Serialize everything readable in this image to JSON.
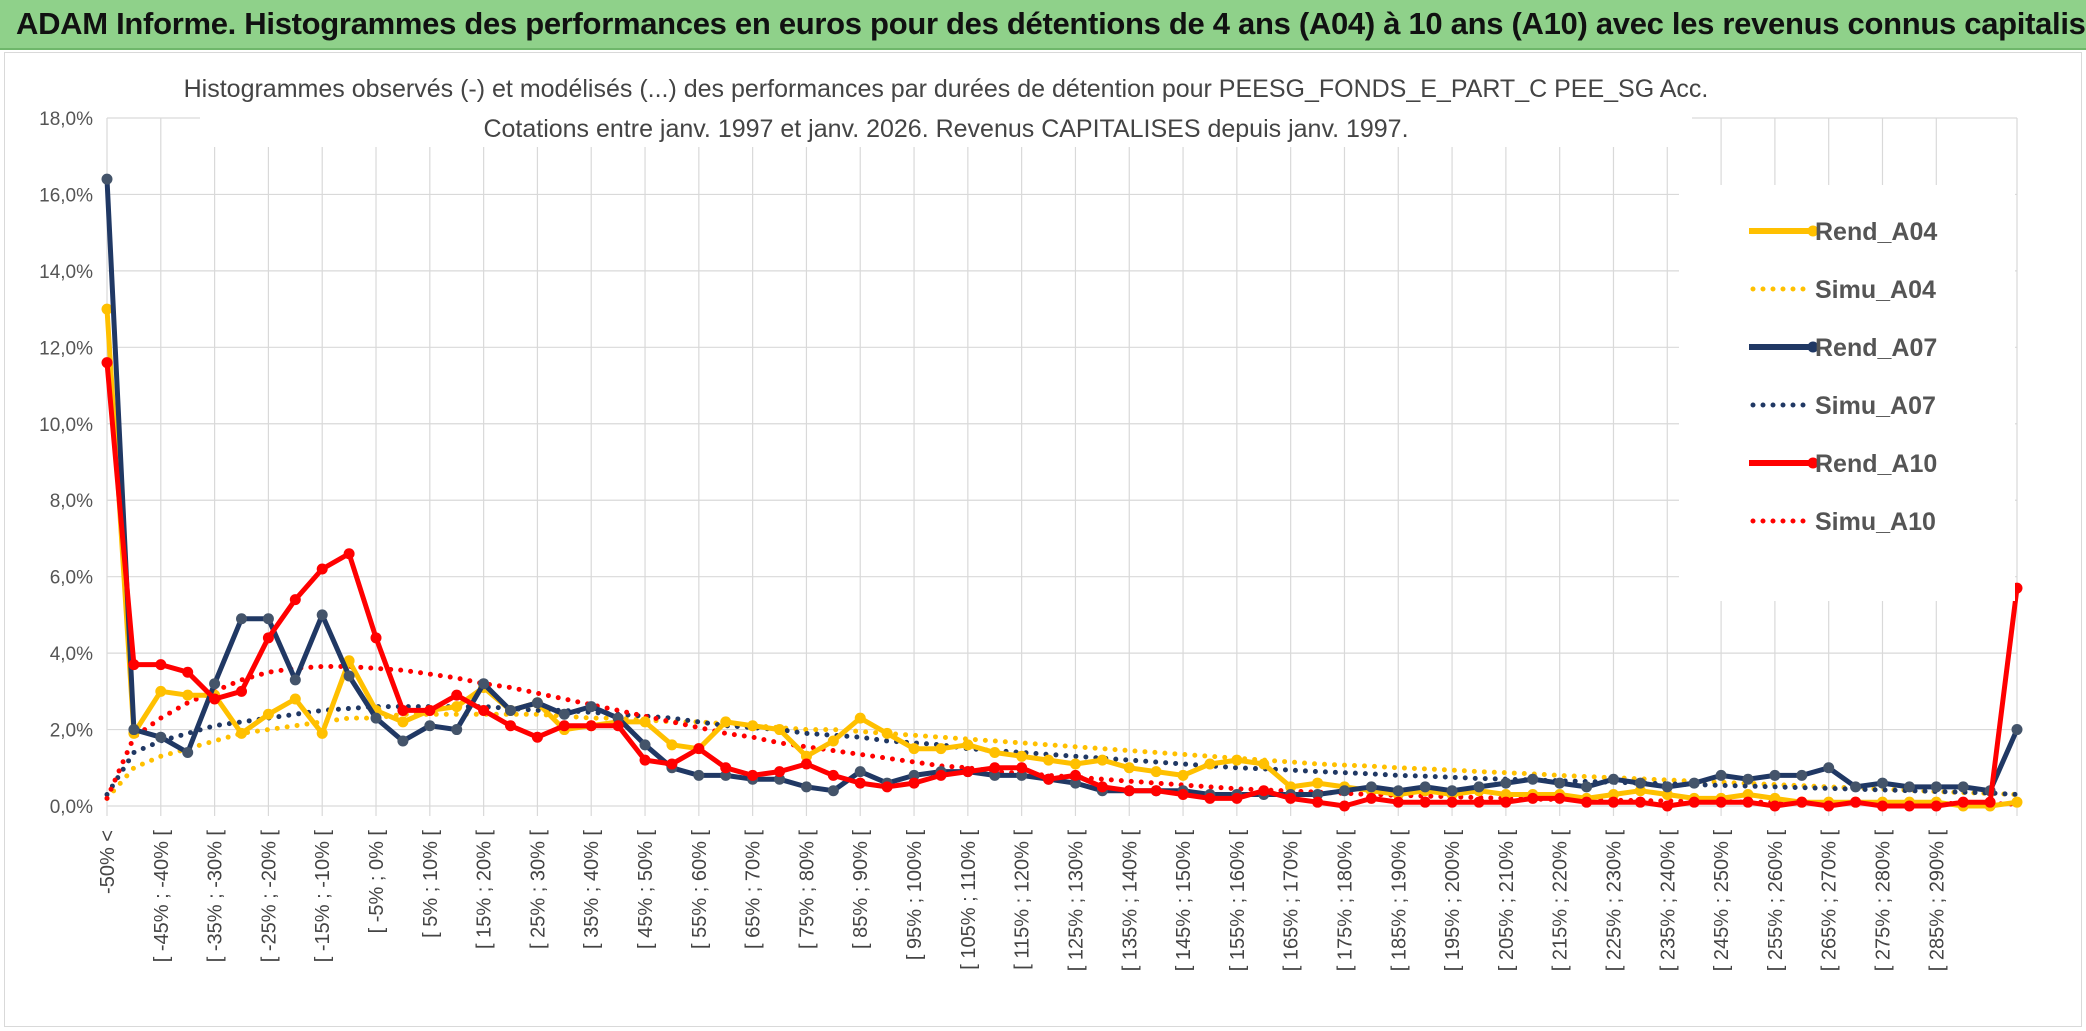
{
  "banner": {
    "title": "ADAM Informe. Histogrammes des performances en euros pour des détentions de 4 ans (A04) à 10 ans (A10) avec les revenus connus capitalisés"
  },
  "colors": {
    "banner_bg": "#8fd18a",
    "A04": "#ffc000",
    "A07": "#203864",
    "A10": "#ff0000",
    "A07_marker": "#44546a"
  },
  "chart_data": {
    "type": "line",
    "title": "Histogrammes observés (-) et modélisés (...) des performances par durées de détention pour PEESG_FONDS_E_PART_C PEE_SG Acc.",
    "subtitle": "Cotations entre janv. 1997 et janv. 2026. Revenus CAPITALISES depuis janv. 1997.",
    "xlabel": "",
    "ylabel": "",
    "ylim": [
      0,
      18
    ],
    "y_ticks": [
      "0,0%",
      "2,0%",
      "4,0%",
      "6,0%",
      "8,0%",
      "10,0%",
      "12,0%",
      "14,0%",
      "16,0%",
      "18,0%"
    ],
    "grid": true,
    "legend_position": "right",
    "x_tick_labels": [
      "-50% <",
      "[ -45% ; -40% [",
      "[ -35% ; -30% [",
      "[ -25% ; -20% [",
      "[ -15% ; -10% [",
      "[ -5% ; 0% [",
      "[ 5% ; 10% [",
      "[ 15% ; 20% [",
      "[ 25% ; 30% [",
      "[ 35% ; 40% [",
      "[ 45% ; 50% [",
      "[ 55% ; 60% [",
      "[ 65% ; 70% [",
      "[ 75% ; 80% [",
      "[ 85% ; 90% [",
      "[ 95% ; 100% [",
      "[ 105% ; 110% [",
      "[ 115% ; 120% [",
      "[ 125% ; 130% [",
      "[ 135% ; 140% [",
      "[ 145% ; 150% [",
      "[ 155% ; 160% [",
      "[ 165% ; 170% [",
      "[ 175% ; 180% [",
      "[ 185% ; 190% [",
      "[ 195% ; 200% [",
      "[ 205% ; 210% [",
      "[ 215% ; 220% [",
      "[ 225% ; 230% [",
      "[ 235% ; 240% [",
      "[ 245% ; 250% [",
      "[ 255% ; 260% [",
      "[ 265% ; 270% [",
      "[ 275% ; 280% [",
      "[ 285% ; 290% ["
    ],
    "series": [
      {
        "name": "Rend_A04",
        "style": "solid",
        "color": "#ffc000",
        "values": [
          13.0,
          1.9,
          3.0,
          2.9,
          2.9,
          1.9,
          2.4,
          2.8,
          1.9,
          3.8,
          2.5,
          2.2,
          2.5,
          2.6,
          3.1,
          2.5,
          2.7,
          2.0,
          2.1,
          2.2,
          2.2,
          1.6,
          1.5,
          2.2,
          2.1,
          2.0,
          1.3,
          1.7,
          2.3,
          1.9,
          1.5,
          1.5,
          1.6,
          1.4,
          1.3,
          1.2,
          1.1,
          1.2,
          1.0,
          0.9,
          0.8,
          1.1,
          1.2,
          1.1,
          0.5,
          0.6,
          0.5,
          0.4,
          0.3,
          0.4,
          0.3,
          0.4,
          0.3,
          0.3,
          0.3,
          0.2,
          0.3,
          0.4,
          0.3,
          0.2,
          0.2,
          0.3,
          0.2,
          0.1,
          0.1,
          0.1,
          0.1,
          0.1,
          0.1,
          0.0,
          0.0,
          0.1
        ]
      },
      {
        "name": "Simu_A04",
        "style": "dotted",
        "color": "#ffc000",
        "values": [
          0.2,
          1.0,
          1.3,
          1.5,
          1.7,
          1.9,
          2.0,
          2.1,
          2.2,
          2.3,
          2.3,
          2.4,
          2.4,
          2.4,
          2.4,
          2.4,
          2.4,
          2.35,
          2.3,
          2.3,
          2.25,
          2.2,
          2.2,
          2.15,
          2.1,
          2.05,
          2.0,
          2.0,
          1.95,
          1.9,
          1.85,
          1.8,
          1.75,
          1.7,
          1.65,
          1.6,
          1.55,
          1.5,
          1.45,
          1.4,
          1.35,
          1.3,
          1.25,
          1.2,
          1.15,
          1.1,
          1.07,
          1.04,
          1.0,
          0.97,
          0.94,
          0.9,
          0.87,
          0.84,
          0.8,
          0.77,
          0.74,
          0.71,
          0.68,
          0.65,
          0.62,
          0.59,
          0.56,
          0.53,
          0.5,
          0.47,
          0.44,
          0.41,
          0.38,
          0.35,
          0.33,
          0.3
        ]
      },
      {
        "name": "Rend_A07",
        "style": "solid",
        "color": "#203864",
        "values": [
          16.4,
          2.0,
          1.8,
          1.4,
          3.2,
          4.9,
          4.9,
          3.3,
          5.0,
          3.4,
          2.3,
          1.7,
          2.1,
          2.0,
          3.2,
          2.5,
          2.7,
          2.4,
          2.6,
          2.3,
          1.6,
          1.0,
          0.8,
          0.8,
          0.7,
          0.7,
          0.5,
          0.4,
          0.9,
          0.6,
          0.8,
          0.9,
          0.9,
          0.8,
          0.8,
          0.7,
          0.6,
          0.4,
          0.4,
          0.4,
          0.4,
          0.3,
          0.3,
          0.3,
          0.3,
          0.3,
          0.4,
          0.5,
          0.4,
          0.5,
          0.4,
          0.5,
          0.6,
          0.7,
          0.6,
          0.5,
          0.7,
          0.6,
          0.5,
          0.6,
          0.8,
          0.7,
          0.8,
          0.8,
          1.0,
          0.5,
          0.6,
          0.5,
          0.5,
          0.5,
          0.4,
          2.0
        ]
      },
      {
        "name": "Simu_A07",
        "style": "dotted",
        "color": "#203864",
        "values": [
          0.3,
          1.4,
          1.7,
          1.9,
          2.1,
          2.2,
          2.3,
          2.4,
          2.5,
          2.55,
          2.6,
          2.6,
          2.6,
          2.6,
          2.6,
          2.55,
          2.5,
          2.5,
          2.45,
          2.4,
          2.35,
          2.3,
          2.2,
          2.1,
          2.05,
          2.0,
          1.9,
          1.85,
          1.8,
          1.7,
          1.65,
          1.6,
          1.5,
          1.45,
          1.4,
          1.35,
          1.3,
          1.25,
          1.2,
          1.15,
          1.1,
          1.05,
          1.0,
          0.97,
          0.94,
          0.9,
          0.87,
          0.84,
          0.8,
          0.78,
          0.75,
          0.72,
          0.7,
          0.68,
          0.66,
          0.64,
          0.62,
          0.6,
          0.58,
          0.56,
          0.54,
          0.52,
          0.5,
          0.48,
          0.46,
          0.44,
          0.42,
          0.4,
          0.38,
          0.36,
          0.34,
          0.3
        ]
      },
      {
        "name": "Rend_A10",
        "style": "solid",
        "color": "#ff0000",
        "values": [
          11.6,
          3.7,
          3.7,
          3.5,
          2.8,
          3.0,
          4.4,
          5.4,
          6.2,
          6.6,
          4.4,
          2.5,
          2.5,
          2.9,
          2.5,
          2.1,
          1.8,
          2.1,
          2.1,
          2.1,
          1.2,
          1.1,
          1.5,
          1.0,
          0.8,
          0.9,
          1.1,
          0.8,
          0.6,
          0.5,
          0.6,
          0.8,
          0.9,
          1.0,
          1.0,
          0.7,
          0.8,
          0.5,
          0.4,
          0.4,
          0.3,
          0.2,
          0.2,
          0.4,
          0.2,
          0.1,
          0.0,
          0.2,
          0.1,
          0.1,
          0.1,
          0.1,
          0.1,
          0.2,
          0.2,
          0.1,
          0.1,
          0.1,
          0.0,
          0.1,
          0.1,
          0.1,
          0.0,
          0.1,
          0.0,
          0.1,
          0.0,
          0.0,
          0.0,
          0.1,
          0.1,
          5.7
        ]
      },
      {
        "name": "Simu_A10",
        "style": "dotted",
        "color": "#ff0000",
        "values": [
          0.2,
          1.8,
          2.3,
          2.7,
          3.0,
          3.3,
          3.5,
          3.6,
          3.65,
          3.65,
          3.6,
          3.55,
          3.45,
          3.35,
          3.2,
          3.1,
          2.95,
          2.8,
          2.65,
          2.5,
          2.35,
          2.2,
          2.05,
          1.9,
          1.8,
          1.65,
          1.55,
          1.45,
          1.35,
          1.25,
          1.15,
          1.05,
          1.0,
          0.9,
          0.85,
          0.8,
          0.75,
          0.7,
          0.65,
          0.6,
          0.55,
          0.5,
          0.45,
          0.42,
          0.39,
          0.36,
          0.33,
          0.3,
          0.28,
          0.26,
          0.24,
          0.22,
          0.2,
          0.18,
          0.17,
          0.16,
          0.15,
          0.14,
          0.13,
          0.12,
          0.11,
          0.1,
          0.1,
          0.09,
          0.09,
          0.08,
          0.08,
          0.07,
          0.07,
          0.06,
          0.06,
          0.05
        ]
      }
    ]
  }
}
